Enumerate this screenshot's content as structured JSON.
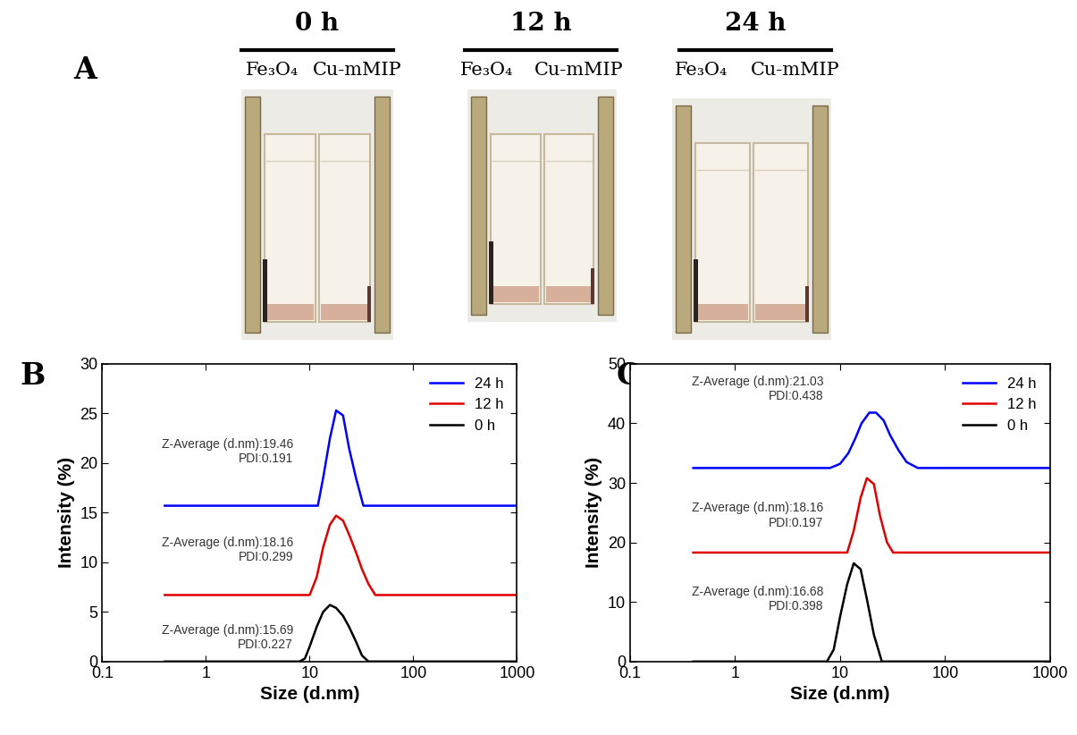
{
  "photo_panel": {
    "panel_label": "A",
    "groups": [
      {
        "title": "0 h",
        "samples": [
          "Fe₃O₄",
          "Cu-mMIP"
        ]
      },
      {
        "title": "12 h",
        "samples": [
          "Fe₃O₄",
          "Cu-mMIP"
        ]
      },
      {
        "title": "24 h",
        "samples": [
          "Fe₃O₄",
          "Cu-mMIP"
        ]
      }
    ]
  },
  "chart_data": [
    {
      "type": "line",
      "panel_label": "B",
      "xlabel": "Size (d.nm)",
      "ylabel": "Intensity (%)",
      "log": "x",
      "xlim": [
        0.1,
        1000
      ],
      "xticks": [
        0.1,
        1,
        10,
        100,
        1000
      ],
      "ylim": [
        0,
        30
      ],
      "yticks": [
        0,
        5,
        10,
        15,
        20,
        25,
        30
      ],
      "legend": "upper right",
      "series": [
        {
          "name": "24 h",
          "color": "#0000ff",
          "x": [
            0.4,
            12,
            13.5,
            15.7,
            18,
            21,
            24,
            28,
            33,
            1000
          ],
          "values": [
            15.7,
            15.7,
            18.5,
            22.5,
            25.3,
            24.8,
            21.5,
            18.5,
            15.7,
            15.7
          ]
        },
        {
          "name": "12 h",
          "color": "#e00000",
          "x": [
            0.4,
            10,
            11.7,
            13.5,
            15.7,
            18,
            21,
            24,
            28,
            32,
            37,
            43,
            1000
          ],
          "values": [
            6.7,
            6.7,
            8.5,
            11.5,
            13.8,
            14.7,
            14.2,
            12.8,
            11,
            9.3,
            7.8,
            6.7,
            6.7
          ]
        },
        {
          "name": "0 h",
          "color": "#000000",
          "x": [
            0.4,
            8,
            9,
            10,
            11.7,
            13.5,
            15.7,
            18,
            21,
            24,
            28,
            32,
            37,
            1000
          ],
          "values": [
            0,
            0,
            0.3,
            1.5,
            3.5,
            5.0,
            5.7,
            5.4,
            4.6,
            3.5,
            2.0,
            0.6,
            0,
            0
          ]
        }
      ],
      "annotations": [
        {
          "series": "24 h",
          "text": "Z-Average (d.nm):19.46\nPDI:0.191"
        },
        {
          "series": "12 h",
          "text": "Z-Average (d.nm):18.16\nPDI:0.299"
        },
        {
          "series": "0 h",
          "text": "Z-Average (d.nm):15.69\nPDI:0.227"
        }
      ]
    },
    {
      "type": "line",
      "panel_label": "C",
      "xlabel": "Size (d.nm)",
      "ylabel": "Intensity (%)",
      "log": "x",
      "xlim": [
        0.1,
        1000
      ],
      "xticks": [
        0.1,
        1,
        10,
        100,
        1000
      ],
      "ylim": [
        0,
        50
      ],
      "yticks": [
        0,
        10,
        20,
        30,
        40,
        50
      ],
      "legend": "upper right",
      "series": [
        {
          "name": "24 h",
          "color": "#0000ff",
          "x": [
            0.4,
            8,
            10,
            12,
            14,
            16,
            19,
            22,
            26,
            30,
            36,
            43,
            55,
            1000
          ],
          "values": [
            32.5,
            32.5,
            33.2,
            35,
            37.5,
            40,
            41.8,
            41.8,
            40.5,
            38,
            35.5,
            33.5,
            32.5,
            32.5
          ]
        },
        {
          "name": "12 h",
          "color": "#e00000",
          "x": [
            0.4,
            11.7,
            13.5,
            15.7,
            18,
            21,
            24,
            28,
            32,
            1000
          ],
          "values": [
            18.3,
            18.3,
            22,
            27.5,
            30.8,
            29.8,
            24.5,
            20,
            18.3,
            18.3
          ]
        },
        {
          "name": "0 h",
          "color": "#000000",
          "x": [
            0.4,
            7.5,
            8.7,
            10,
            11.7,
            13.5,
            15.7,
            18,
            21,
            25,
            1000
          ],
          "values": [
            0,
            0,
            2,
            7.5,
            13,
            16.5,
            15.5,
            10.5,
            4.5,
            0,
            0
          ]
        }
      ],
      "annotations": [
        {
          "series": "24 h",
          "text": "Z-Average (d.nm):21.03\nPDI:0.438"
        },
        {
          "series": "12 h",
          "text": "Z-Average (d.nm):18.16\nPDI:0.197"
        },
        {
          "series": "0 h",
          "text": "Z-Average (d.nm):16.68\nPDI:0.398"
        }
      ]
    }
  ]
}
